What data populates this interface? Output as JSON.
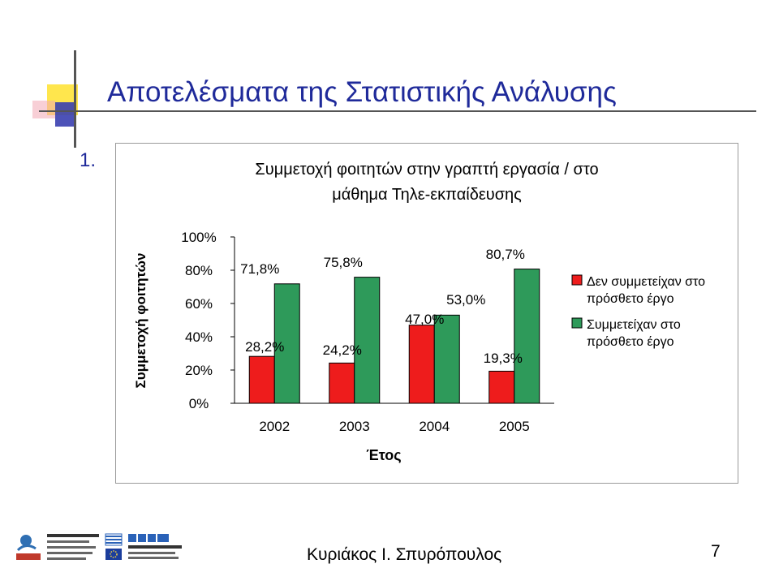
{
  "slide": {
    "title": "Αποτελέσματα της Στατιστικής Ανάλυσης",
    "list_number": "1.",
    "footer_author": "Κυριάκος Ι. Σπυρόπουλος",
    "page_number": "7"
  },
  "colors": {
    "title": "#1f2a9a",
    "decor_yellow": "#ffe64d",
    "decor_blue": "#3a3fb0",
    "series_red": "#ee1c1c",
    "series_green": "#2e9a5a"
  },
  "chart_data": {
    "type": "bar",
    "title_lines": [
      "Συμμετοχή φοιτητών στην γραπτή εργασία / στο",
      "μάθημα Τηλε-εκπαίδευσης"
    ],
    "xlabel": "Έτος",
    "ylabel": "Συμμετοχή φοιτητών",
    "categories": [
      "2002",
      "2003",
      "2004",
      "2005"
    ],
    "ylim": [
      0,
      100
    ],
    "yticks": [
      0,
      20,
      40,
      60,
      80,
      100
    ],
    "ytick_labels": [
      "0%",
      "20%",
      "40%",
      "60%",
      "80%",
      "100%"
    ],
    "grid": false,
    "legend_position": "right",
    "series": [
      {
        "legend_lines": [
          "Δεν συμμετείχαν στο",
          "πρόσθετο έργο"
        ],
        "color": "#ee1c1c",
        "values": [
          28.2,
          24.2,
          47.0,
          19.3
        ],
        "value_labels": [
          "28,2%",
          "24,2%",
          "47,0%",
          "19,3%"
        ]
      },
      {
        "legend_lines": [
          "Συμμετείχαν στο",
          "πρόσθετο έργο"
        ],
        "color": "#2e9a5a",
        "values": [
          71.8,
          75.8,
          53.0,
          80.7
        ],
        "value_labels": [
          "71,8%",
          "75,8%",
          "53,0%",
          "80,7%"
        ]
      }
    ]
  }
}
